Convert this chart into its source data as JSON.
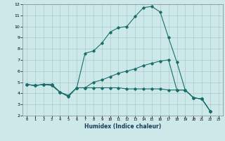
{
  "xlabel": "Humidex (Indice chaleur)",
  "ylabel": "",
  "bg_color": "#cce8e8",
  "grid_color": "#aacccc",
  "line_color": "#1a6e6a",
  "xlim": [
    -0.5,
    23.5
  ],
  "ylim": [
    2,
    12
  ],
  "xticks": [
    0,
    1,
    2,
    3,
    4,
    5,
    6,
    7,
    8,
    9,
    10,
    11,
    12,
    13,
    14,
    15,
    16,
    17,
    18,
    19,
    20,
    21,
    22,
    23
  ],
  "yticks": [
    2,
    3,
    4,
    5,
    6,
    7,
    8,
    9,
    10,
    11,
    12
  ],
  "series": [
    {
      "x": [
        0,
        1,
        2,
        3,
        4,
        5,
        6,
        7,
        8,
        9,
        10,
        11,
        12,
        13,
        14,
        15,
        16,
        17,
        18,
        19,
        20,
        21,
        22
      ],
      "y": [
        4.8,
        4.7,
        4.8,
        4.7,
        4.1,
        3.7,
        4.5,
        7.6,
        7.8,
        8.5,
        9.5,
        9.9,
        10.0,
        10.9,
        11.7,
        11.8,
        11.3,
        9.0,
        6.8,
        4.3,
        3.6,
        3.5,
        2.4
      ]
    },
    {
      "x": [
        0,
        1,
        2,
        3,
        4,
        5,
        6,
        7,
        8,
        9,
        10,
        11,
        12,
        13,
        14,
        15,
        16,
        17,
        18,
        19,
        20,
        21,
        22
      ],
      "y": [
        4.8,
        4.7,
        4.8,
        4.8,
        4.1,
        3.8,
        4.5,
        4.5,
        5.0,
        5.2,
        5.5,
        5.8,
        6.0,
        6.2,
        6.5,
        6.7,
        6.9,
        7.0,
        4.3,
        4.3,
        3.6,
        3.5,
        2.4
      ]
    },
    {
      "x": [
        0,
        1,
        2,
        3,
        4,
        5,
        6,
        7,
        8,
        9,
        10,
        11,
        12,
        13,
        14,
        15,
        16,
        17,
        18,
        19,
        20,
        21,
        22
      ],
      "y": [
        4.8,
        4.7,
        4.8,
        4.8,
        4.1,
        3.8,
        4.5,
        4.5,
        4.5,
        4.5,
        4.5,
        4.5,
        4.4,
        4.4,
        4.4,
        4.4,
        4.4,
        4.3,
        4.3,
        4.3,
        3.6,
        3.5,
        2.4
      ]
    }
  ]
}
